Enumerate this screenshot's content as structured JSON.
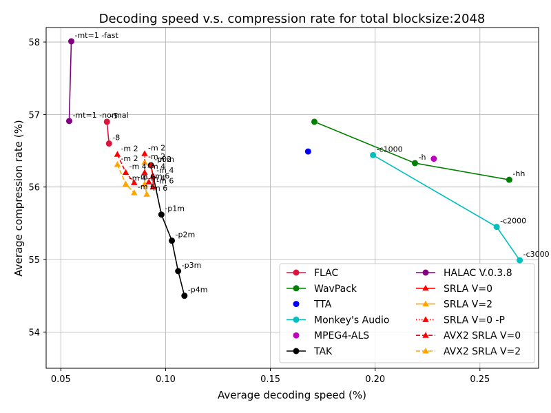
{
  "chart_data": {
    "type": "line",
    "title": "Decoding speed v.s. compression rate for total blocksize:2048",
    "xlabel": "Average decoding speed (%)",
    "ylabel": "Average compression rate (%)",
    "xlim": [
      0.043,
      0.278
    ],
    "ylim": [
      53.5,
      58.2
    ],
    "xticks": [
      0.05,
      0.1,
      0.15,
      0.2,
      0.25
    ],
    "xtick_labels": [
      "0.05",
      "0.10",
      "0.15",
      "0.20",
      "0.25"
    ],
    "yticks": [
      54,
      55,
      56,
      57,
      58
    ],
    "ytick_labels": [
      "54",
      "55",
      "56",
      "57",
      "58"
    ],
    "grid": true,
    "legend_position": "lower right",
    "series": [
      {
        "name": "FLAC",
        "color": "#dc143c",
        "marker": "circle",
        "linestyle": "solid",
        "points": [
          {
            "x": 0.072,
            "y": 56.9,
            "label": "-5"
          },
          {
            "x": 0.073,
            "y": 56.6,
            "label": "-8"
          }
        ]
      },
      {
        "name": "WavPack",
        "color": "#008000",
        "marker": "circle",
        "linestyle": "solid",
        "points": [
          {
            "x": 0.171,
            "y": 56.9,
            "label": ""
          },
          {
            "x": 0.219,
            "y": 56.33,
            "label": "-h"
          },
          {
            "x": 0.264,
            "y": 56.1,
            "label": "-hh"
          }
        ]
      },
      {
        "name": "TTA",
        "color": "#0000ff",
        "marker": "circle",
        "linestyle": "none",
        "points": [
          {
            "x": 0.168,
            "y": 56.49,
            "label": ""
          }
        ]
      },
      {
        "name": "Monkey's Audio",
        "color": "#00bfbf",
        "marker": "circle",
        "linestyle": "solid",
        "points": [
          {
            "x": 0.199,
            "y": 56.44,
            "label": "-c1000"
          },
          {
            "x": 0.258,
            "y": 55.45,
            "label": "-c2000"
          },
          {
            "x": 0.269,
            "y": 54.99,
            "label": "-c3000"
          }
        ]
      },
      {
        "name": "MPEG4-ALS",
        "color": "#bf00bf",
        "marker": "circle",
        "linestyle": "none",
        "points": [
          {
            "x": 0.228,
            "y": 56.39,
            "label": ""
          }
        ]
      },
      {
        "name": "TAK",
        "color": "#000000",
        "marker": "circle",
        "linestyle": "solid",
        "points": [
          {
            "x": 0.093,
            "y": 56.3,
            "label": "-p0m"
          },
          {
            "x": 0.098,
            "y": 55.62,
            "label": "-p1m"
          },
          {
            "x": 0.103,
            "y": 55.26,
            "label": "-p2m"
          },
          {
            "x": 0.106,
            "y": 54.84,
            "label": "-p3m"
          },
          {
            "x": 0.109,
            "y": 54.5,
            "label": "-p4m"
          }
        ]
      },
      {
        "name": "HALAC V.0.3.8",
        "color": "#800080",
        "marker": "circle",
        "linestyle": "solid",
        "points": [
          {
            "x": 0.054,
            "y": 56.91,
            "label": "-mt=1 -normal"
          },
          {
            "x": 0.055,
            "y": 58.01,
            "label": "-mt=1 -fast"
          }
        ]
      },
      {
        "name": "SRLA V=0",
        "color": "#ff0000",
        "marker": "triangle",
        "linestyle": "solid",
        "points": [
          {
            "x": 0.093,
            "y": 56.3,
            "label": "-m 2"
          },
          {
            "x": 0.094,
            "y": 56.15,
            "label": "-m 4"
          },
          {
            "x": 0.094,
            "y": 56.0,
            "label": "-m 6"
          }
        ]
      },
      {
        "name": "SRLA V=2",
        "color": "#ffa500",
        "marker": "triangle",
        "linestyle": "solid",
        "points": [
          {
            "x": 0.09,
            "y": 56.34,
            "label": "-m 2"
          },
          {
            "x": 0.09,
            "y": 56.04,
            "label": "-m 4"
          },
          {
            "x": 0.091,
            "y": 55.9,
            "label": "-m 6"
          }
        ]
      },
      {
        "name": "SRLA V=0 -P",
        "color": "#ff0000",
        "marker": "triangle",
        "linestyle": "dotted",
        "points": [
          {
            "x": 0.09,
            "y": 56.46,
            "label": "-m 2"
          },
          {
            "x": 0.09,
            "y": 56.2,
            "label": "-m 4"
          },
          {
            "x": 0.092,
            "y": 56.07,
            "label": "-m 6"
          }
        ]
      },
      {
        "name": "AVX2 SRLA V=0",
        "color": "#ff0000",
        "marker": "triangle",
        "linestyle": "dashed",
        "points": [
          {
            "x": 0.077,
            "y": 56.45,
            "label": "-m 2"
          },
          {
            "x": 0.081,
            "y": 56.2,
            "label": "-m 4"
          },
          {
            "x": 0.085,
            "y": 56.06,
            "label": "-m 6"
          }
        ]
      },
      {
        "name": "AVX2 SRLA V=2",
        "color": "#ffa500",
        "marker": "triangle",
        "linestyle": "dashed",
        "points": [
          {
            "x": 0.077,
            "y": 56.31,
            "label": "-m 2"
          },
          {
            "x": 0.081,
            "y": 56.04,
            "label": "-m 4"
          },
          {
            "x": 0.085,
            "y": 55.92,
            "label": "-m 6"
          }
        ]
      }
    ]
  }
}
